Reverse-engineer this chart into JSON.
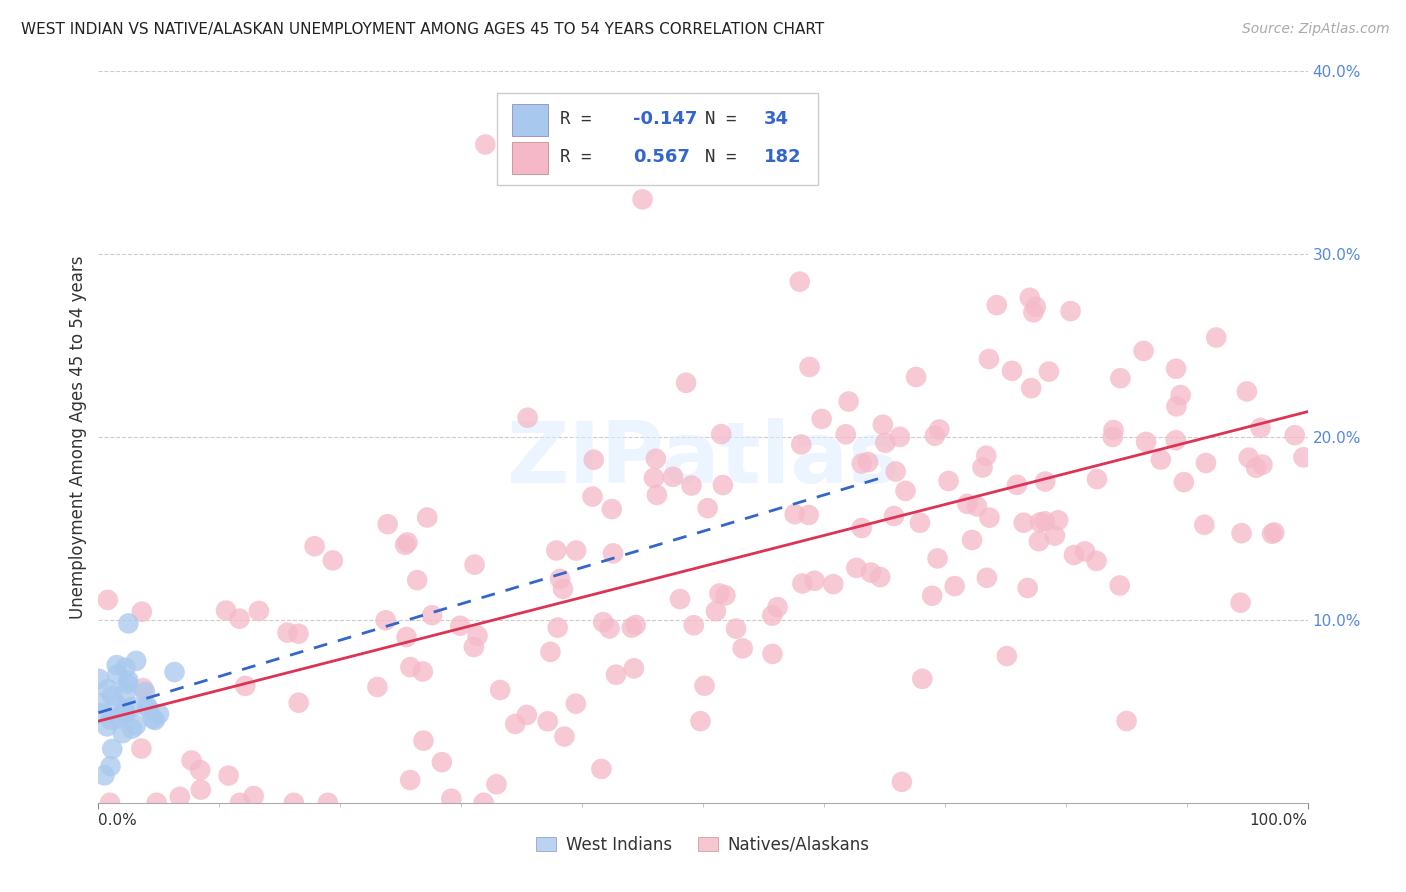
{
  "title": "WEST INDIAN VS NATIVE/ALASKAN UNEMPLOYMENT AMONG AGES 45 TO 54 YEARS CORRELATION CHART",
  "source": "Source: ZipAtlas.com",
  "ylabel": "Unemployment Among Ages 45 to 54 years",
  "xlim": [
    0,
    1.0
  ],
  "ylim": [
    0,
    0.4
  ],
  "xticklabels_left": "0.0%",
  "xticklabels_right": "100.0%",
  "ytick_vals": [
    0.1,
    0.2,
    0.3,
    0.4
  ],
  "yticklabels": [
    "10.0%",
    "20.0%",
    "30.0%",
    "40.0%"
  ],
  "west_indian_color": "#a8c8ee",
  "native_color": "#f5b8c8",
  "west_indian_line_color": "#3366cc",
  "native_line_color": "#dd3355",
  "background_color": "#ffffff",
  "grid_color": "#cccccc",
  "watermark": "ZIPatlas",
  "west_indian_R": -0.147,
  "west_indian_N": 34,
  "native_R": 0.567,
  "native_N": 182,
  "wi_seed": 10,
  "na_seed": 20,
  "title_fontsize": 11,
  "tick_fontsize": 11,
  "ylabel_fontsize": 12,
  "source_fontsize": 10
}
